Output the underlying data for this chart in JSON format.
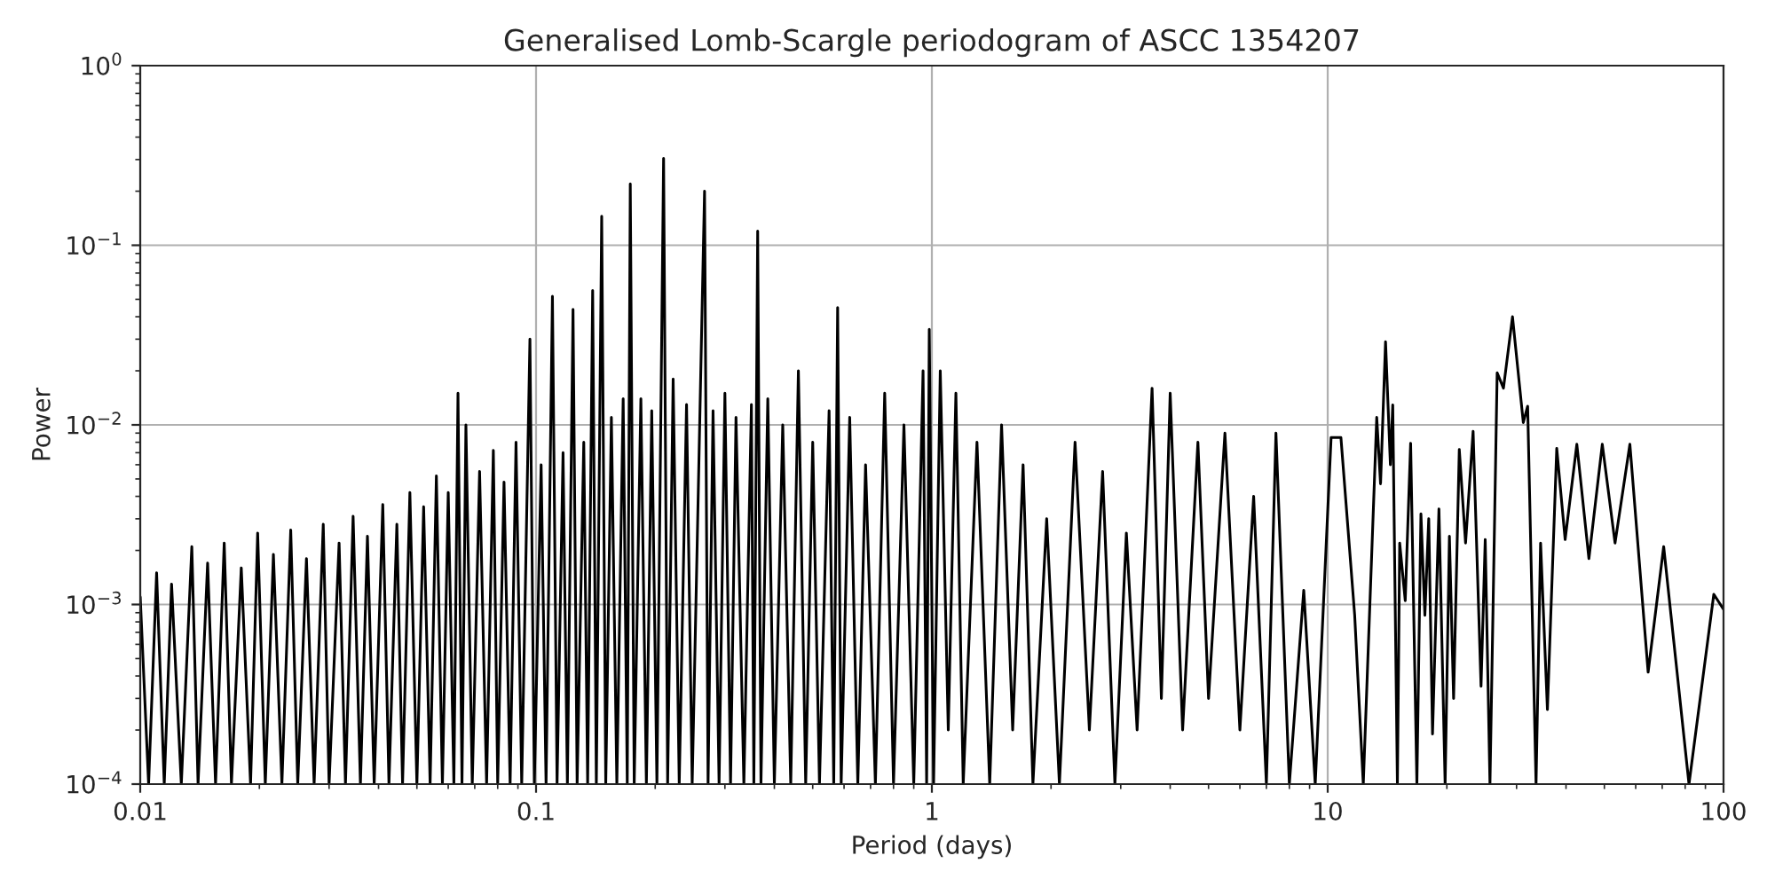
{
  "chart_data": {
    "type": "line",
    "title": "Generalised Lomb-Scargle periodogram of ASCC 1354207",
    "xlabel": "Period (days)",
    "ylabel": "Power",
    "log": "xy",
    "grid": true,
    "legend": false,
    "marker": "none",
    "line_style": "solid",
    "xlim": [
      0.01,
      100
    ],
    "ylim": [
      0.0001,
      1
    ],
    "xticks": [
      0.01,
      0.1,
      1,
      10,
      100
    ],
    "yticks": [
      {
        "value": 0.0001,
        "label": "10$^{−4}$"
      },
      {
        "value": 0.001,
        "label": "10$^{−3}$"
      },
      {
        "value": 0.01,
        "label": "10$^{−2}$"
      },
      {
        "value": 0.1,
        "label": "10$^{−1}$"
      },
      {
        "value": 1,
        "label": "10$^{0}$"
      }
    ],
    "series": [
      {
        "color": "#000000",
        "x": [
          0.01,
          0.0105,
          0.011,
          0.0115,
          0.012,
          0.0127,
          0.0135,
          0.014,
          0.0148,
          0.0155,
          0.0163,
          0.017,
          0.018,
          0.019,
          0.0198,
          0.0207,
          0.0217,
          0.0228,
          0.024,
          0.025,
          0.0263,
          0.0275,
          0.029,
          0.03,
          0.0318,
          0.033,
          0.0345,
          0.036,
          0.0375,
          0.039,
          0.041,
          0.0425,
          0.0445,
          0.046,
          0.048,
          0.05,
          0.052,
          0.054,
          0.056,
          0.058,
          0.06,
          0.062,
          0.0635,
          0.065,
          0.0665,
          0.069,
          0.072,
          0.075,
          0.078,
          0.08,
          0.083,
          0.086,
          0.089,
          0.092,
          0.0965,
          0.099,
          0.103,
          0.106,
          0.11,
          0.113,
          0.117,
          0.12,
          0.124,
          0.127,
          0.132,
          0.135,
          0.139,
          0.142,
          0.1465,
          0.15,
          0.155,
          0.16,
          0.166,
          0.17,
          0.173,
          0.177,
          0.184,
          0.19,
          0.196,
          0.202,
          0.21,
          0.215,
          0.222,
          0.23,
          0.24,
          0.248,
          0.2665,
          0.272,
          0.28,
          0.29,
          0.3,
          0.31,
          0.32,
          0.335,
          0.35,
          0.355,
          0.363,
          0.37,
          0.385,
          0.4,
          0.42,
          0.44,
          0.46,
          0.48,
          0.5,
          0.52,
          0.55,
          0.565,
          0.578,
          0.59,
          0.62,
          0.65,
          0.68,
          0.72,
          0.76,
          0.8,
          0.85,
          0.9,
          0.95,
          0.97,
          0.985,
          1.01,
          1.05,
          1.1,
          1.15,
          1.2,
          1.3,
          1.4,
          1.5,
          1.6,
          1.7,
          1.8,
          1.95,
          2.1,
          2.3,
          2.5,
          2.7,
          2.9,
          3.1,
          3.3,
          3.6,
          3.8,
          4.0,
          4.3,
          4.7,
          5.0,
          5.5,
          6.0,
          6.5,
          7.0,
          7.4,
          8.0,
          8.7,
          9.3,
          10.2,
          10.8,
          11.7,
          12.3,
          13.3,
          13.6,
          14.0,
          14.4,
          14.6,
          15.0,
          15.2,
          15.7,
          16.2,
          16.8,
          17.2,
          17.6,
          18.0,
          18.4,
          19.1,
          19.8,
          20.3,
          20.8,
          21.5,
          22.3,
          23.3,
          24.4,
          25.0,
          25.7,
          26.8,
          27.8,
          29.3,
          31.2,
          32.0,
          33.6,
          34.5,
          35.9,
          37.9,
          39.8,
          42.6,
          45.7,
          49.4,
          53.2,
          58.0,
          64.5,
          70.6,
          81.8,
          94.5,
          100
        ],
        "values": [
          0.0011,
          0.0001,
          0.0015,
          0.0001,
          0.0013,
          0.0001,
          0.0021,
          0.0001,
          0.0017,
          0.0001,
          0.0022,
          0.0001,
          0.0016,
          0.0001,
          0.0025,
          0.0001,
          0.0019,
          0.0001,
          0.0026,
          0.0001,
          0.0018,
          0.0001,
          0.0028,
          0.0001,
          0.0022,
          0.0001,
          0.0031,
          0.0001,
          0.0024,
          0.0001,
          0.0036,
          0.0001,
          0.0028,
          0.0001,
          0.0042,
          0.0001,
          0.0035,
          0.0001,
          0.0052,
          0.0001,
          0.0042,
          0.0001,
          0.015,
          0.0001,
          0.01,
          0.0001,
          0.0055,
          0.0001,
          0.0072,
          0.0001,
          0.0048,
          0.0001,
          0.008,
          0.0001,
          0.03,
          0.0001,
          0.006,
          0.0001,
          0.052,
          0.0001,
          0.007,
          0.0001,
          0.044,
          0.0001,
          0.008,
          0.0001,
          0.056,
          0.0001,
          0.145,
          0.0001,
          0.011,
          0.0001,
          0.014,
          0.0001,
          0.22,
          0.0001,
          0.014,
          0.0001,
          0.012,
          0.0001,
          0.305,
          0.0001,
          0.018,
          0.0001,
          0.013,
          0.0001,
          0.2,
          0.0001,
          0.012,
          0.0001,
          0.015,
          0.0001,
          0.011,
          0.0001,
          0.013,
          0.0001,
          0.12,
          0.0001,
          0.014,
          0.0001,
          0.01,
          0.0001,
          0.02,
          0.0001,
          0.008,
          0.0001,
          0.012,
          0.0001,
          0.045,
          0.0001,
          0.011,
          0.0001,
          0.006,
          0.0001,
          0.015,
          0.0001,
          0.01,
          0.0001,
          0.02,
          0.0001,
          0.034,
          0.0001,
          0.02,
          0.0002,
          0.015,
          0.0001,
          0.008,
          0.0001,
          0.01,
          0.0002,
          0.006,
          0.0001,
          0.003,
          0.0001,
          0.008,
          0.0002,
          0.0055,
          0.0001,
          0.0025,
          0.0002,
          0.016,
          0.0003,
          0.015,
          0.0002,
          0.008,
          0.0003,
          0.009,
          0.0002,
          0.004,
          0.0001,
          0.009,
          0.0001,
          0.0012,
          0.0001,
          0.0085,
          0.0085,
          0.00087,
          0.0001,
          0.011,
          0.0047,
          0.029,
          0.006,
          0.0129,
          0.0001,
          0.0022,
          0.00105,
          0.0079,
          0.0001,
          0.0032,
          0.00087,
          0.003,
          0.00019,
          0.0034,
          0.0001,
          0.0024,
          0.0003,
          0.0073,
          0.0022,
          0.0092,
          0.00035,
          0.0023,
          0.0001,
          0.0195,
          0.016,
          0.04,
          0.0103,
          0.0127,
          0.0001,
          0.0022,
          0.00026,
          0.0074,
          0.0023,
          0.0078,
          0.0018,
          0.0078,
          0.0022,
          0.0078,
          0.00042,
          0.0021,
          0.0001,
          0.00114,
          0.00094
        ]
      }
    ]
  }
}
